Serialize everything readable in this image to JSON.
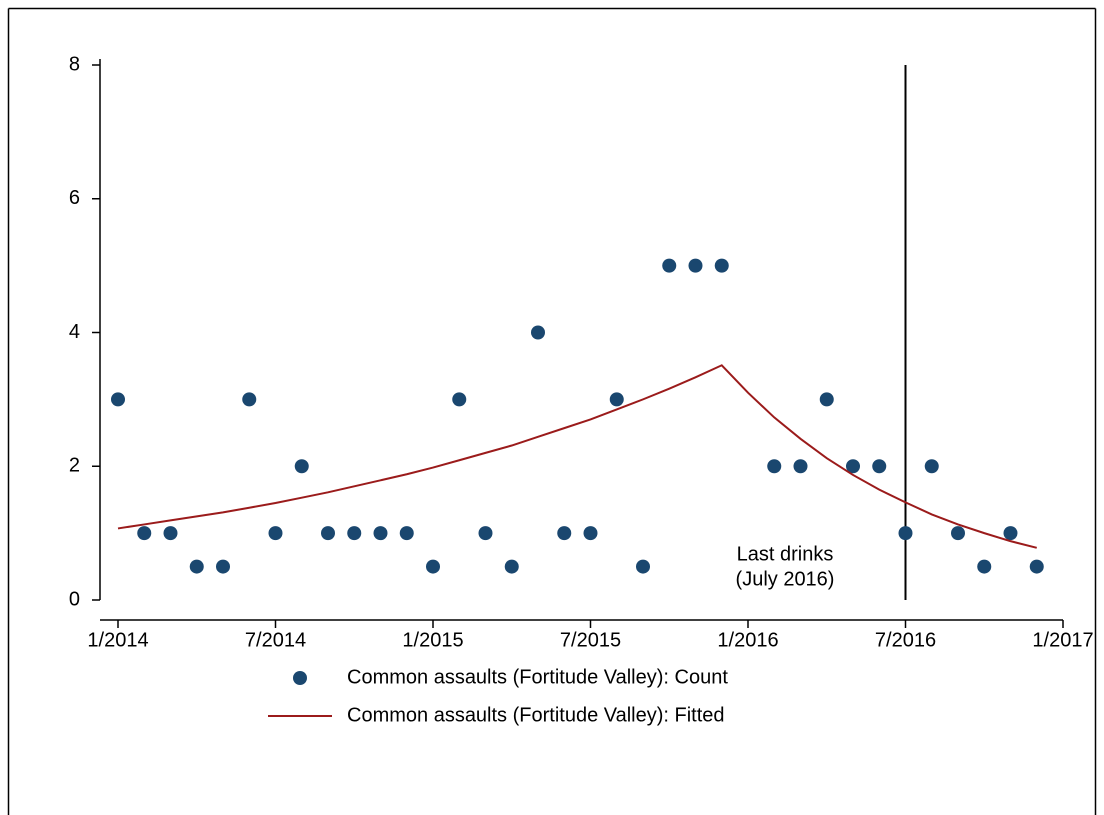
{
  "chart_data": {
    "type": "scatter",
    "x": [
      "1/2014",
      "2/2014",
      "3/2014",
      "4/2014",
      "5/2014",
      "6/2014",
      "7/2014",
      "8/2014",
      "9/2014",
      "10/2014",
      "11/2014",
      "12/2014",
      "1/2015",
      "2/2015",
      "3/2015",
      "4/2015",
      "5/2015",
      "6/2015",
      "7/2015",
      "8/2015",
      "9/2015",
      "10/2015",
      "11/2015",
      "12/2015",
      "1/2016",
      "2/2016",
      "3/2016",
      "4/2016",
      "5/2016",
      "6/2016",
      "7/2016",
      "8/2016",
      "9/2016",
      "10/2016",
      "11/2016",
      "12/2016"
    ],
    "series": [
      {
        "name": "Common assaults (Fortitude Valley): Count",
        "type": "scatter",
        "color": "#1a476f",
        "values": [
          3,
          1,
          1,
          0.5,
          0.5,
          3,
          1,
          2,
          1,
          1,
          1,
          1,
          0.5,
          3,
          1,
          0.5,
          4,
          1,
          1,
          3,
          0.5,
          5,
          5,
          5,
          null,
          2,
          2,
          3,
          2,
          2,
          1,
          2,
          1,
          0.5,
          1,
          0.5
        ]
      },
      {
        "name": "Common assaults (Fortitude Valley): Fitted",
        "type": "line",
        "color": "#9b1b1b",
        "values": [
          1.07,
          1.13,
          1.19,
          1.25,
          1.31,
          1.38,
          1.45,
          1.53,
          1.61,
          1.7,
          1.79,
          1.88,
          1.98,
          2.09,
          2.2,
          2.31,
          2.44,
          2.57,
          2.7,
          2.85,
          3.0,
          3.16,
          3.33,
          3.51,
          3.1,
          2.73,
          2.41,
          2.12,
          1.87,
          1.65,
          1.46,
          1.28,
          1.13,
          1.0,
          0.88,
          0.78
        ]
      }
    ],
    "xlim": [
      "1/2014",
      "1/2017"
    ],
    "xticks": [
      "1/2014",
      "7/2014",
      "1/2015",
      "7/2015",
      "1/2016",
      "7/2016",
      "1/2017"
    ],
    "ylim": [
      0,
      8
    ],
    "yticks": [
      0,
      2,
      4,
      6,
      8
    ],
    "vline": "7/2016",
    "annotation": [
      "Last drinks",
      "(July 2016)"
    ],
    "legend": "bottom"
  }
}
